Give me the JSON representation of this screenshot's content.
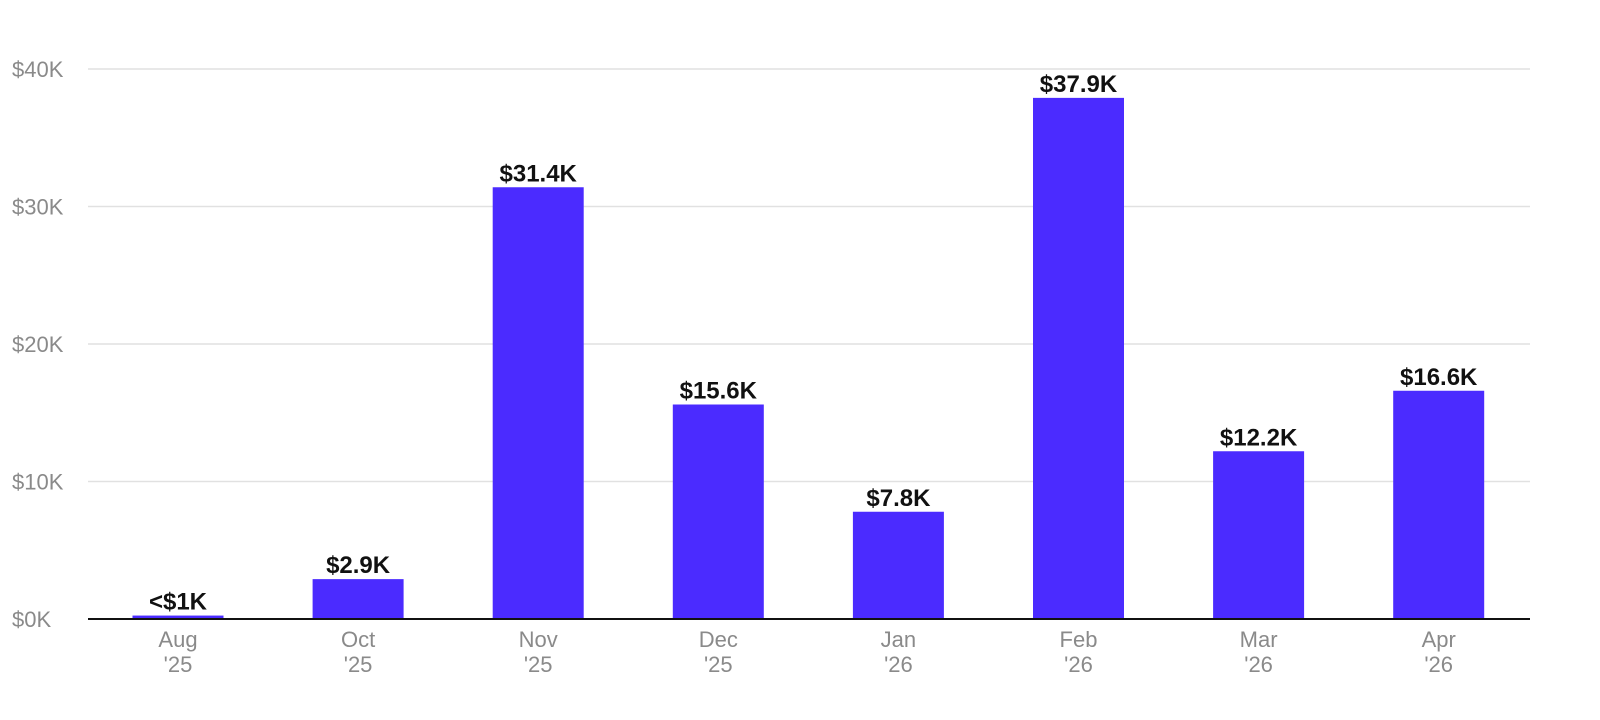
{
  "colors": {
    "bar": "#4b2bff",
    "grid": "#e1e1e1",
    "axis": "#111111",
    "tick_text": "#8a8a8a",
    "label_text": "#111111"
  },
  "chart_data": {
    "type": "bar",
    "categories": [
      {
        "month": "Aug",
        "year": "'25"
      },
      {
        "month": "Oct",
        "year": "'25"
      },
      {
        "month": "Nov",
        "year": "'25"
      },
      {
        "month": "Dec",
        "year": "'25"
      },
      {
        "month": "Jan",
        "year": "'26"
      },
      {
        "month": "Feb",
        "year": "'26"
      },
      {
        "month": "Mar",
        "year": "'26"
      },
      {
        "month": "Apr",
        "year": "'26"
      }
    ],
    "values": [
      250,
      2900,
      31400,
      15600,
      7800,
      37900,
      12200,
      16600
    ],
    "data_labels": [
      "<$1K",
      "$2.9K",
      "$31.4K",
      "$15.6K",
      "$7.8K",
      "$37.9K",
      "$12.2K",
      "$16.6K"
    ],
    "ylim": [
      0,
      40000
    ],
    "yticks": [
      0,
      10000,
      20000,
      30000,
      40000
    ],
    "ytick_labels": [
      "$0K",
      "$10K",
      "$20K",
      "$30K",
      "$40K"
    ],
    "grid": true,
    "legend": "none",
    "title": "",
    "xlabel": "",
    "ylabel": ""
  }
}
